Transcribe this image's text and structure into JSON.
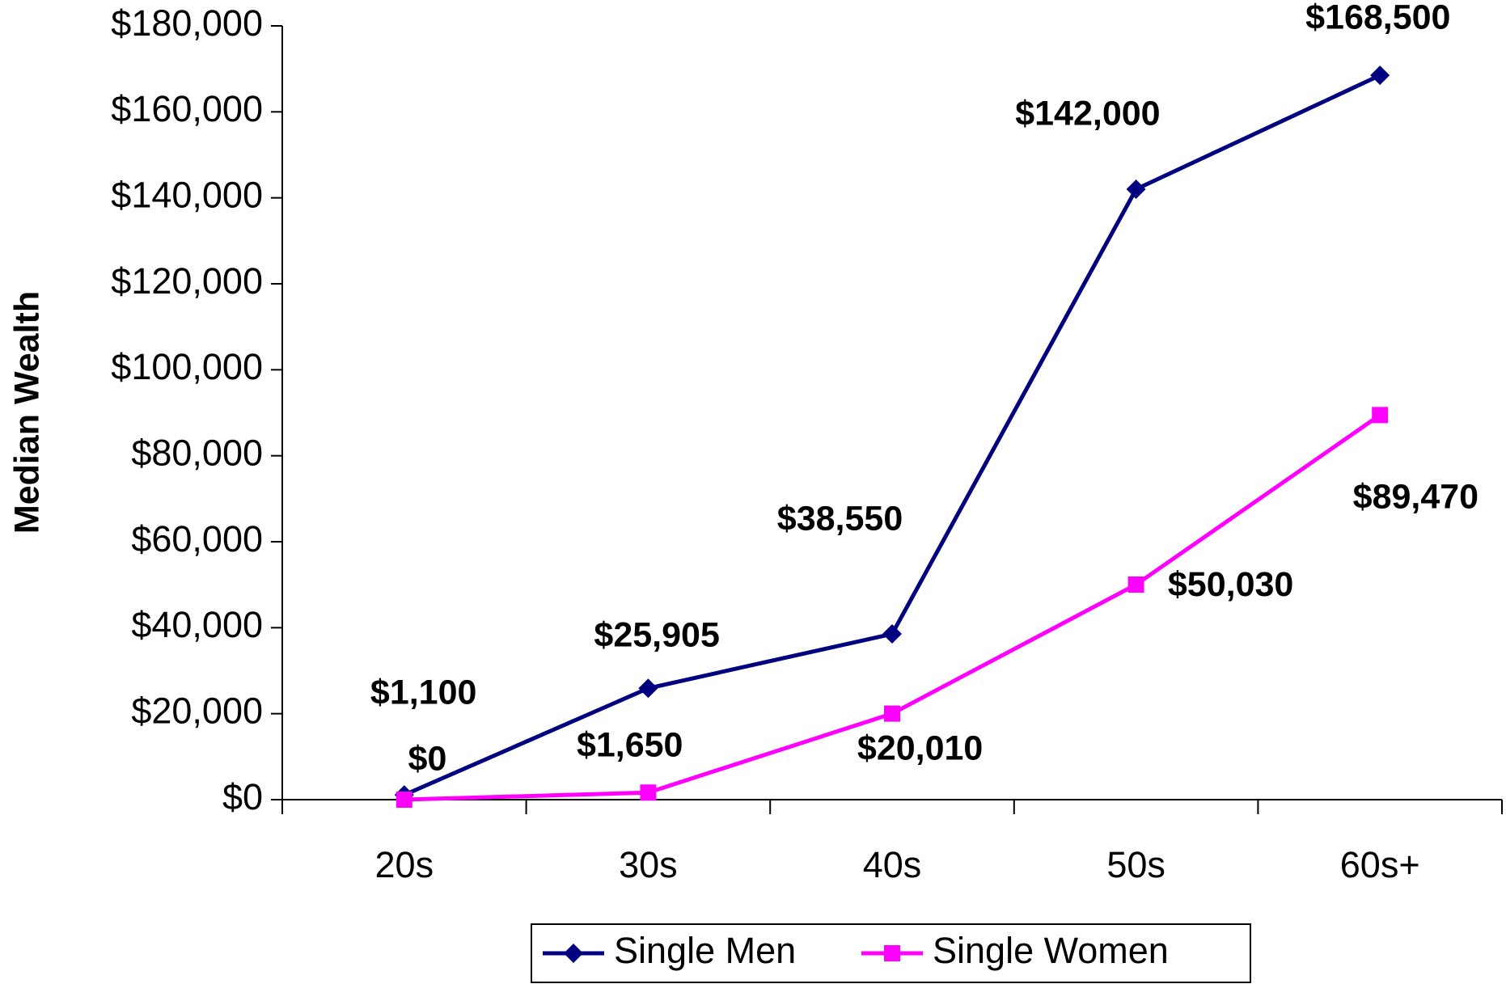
{
  "chart_data": {
    "type": "line",
    "y_axis_label": "Median Wealth",
    "categories": [
      "20s",
      "30s",
      "40s",
      "50s",
      "60s+"
    ],
    "series": [
      {
        "name": "Single Men",
        "color": "#000080",
        "marker": "diamond",
        "values": [
          1100,
          25905,
          38550,
          142000,
          168500
        ],
        "value_labels": [
          "$1,100",
          "$25,905",
          "$38,550",
          "$142,000",
          "$168,500"
        ]
      },
      {
        "name": "Single Women",
        "color": "#ff00ff",
        "marker": "square",
        "values": [
          0,
          1650,
          20010,
          50030,
          89470
        ],
        "value_labels": [
          "$0",
          "$1,650",
          "$20,010",
          "$50,030",
          "$89,470"
        ]
      }
    ],
    "ylim": [
      0,
      180000
    ],
    "yticks": [
      {
        "value": 0,
        "label": "$0"
      },
      {
        "value": 20000,
        "label": "$20,000"
      },
      {
        "value": 40000,
        "label": "$40,000"
      },
      {
        "value": 60000,
        "label": "$60,000"
      },
      {
        "value": 80000,
        "label": "$80,000"
      },
      {
        "value": 100000,
        "label": "$100,000"
      },
      {
        "value": 120000,
        "label": "$120,000"
      },
      {
        "value": 140000,
        "label": "$140,000"
      },
      {
        "value": 160000,
        "label": "$160,000"
      },
      {
        "value": 180000,
        "label": "$180,000"
      }
    ],
    "legend": "bottom"
  }
}
